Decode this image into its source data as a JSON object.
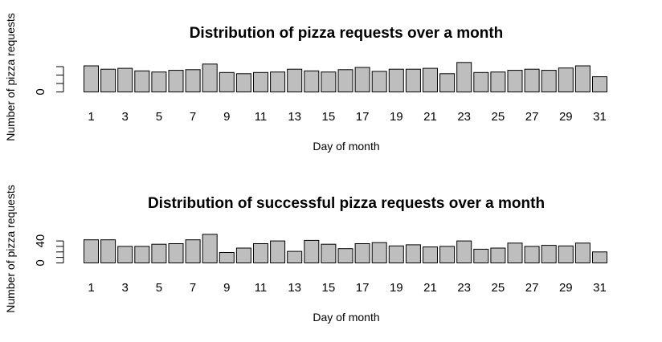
{
  "chart_data": [
    {
      "type": "bar",
      "title": "Distribution of pizza requests over a month",
      "xlabel": "Day of month",
      "ylabel": "Number of pizza requests",
      "categories": [
        "1",
        "2",
        "3",
        "4",
        "5",
        "6",
        "7",
        "8",
        "9",
        "10",
        "11",
        "12",
        "13",
        "14",
        "15",
        "16",
        "17",
        "18",
        "19",
        "20",
        "21",
        "22",
        "23",
        "24",
        "25",
        "26",
        "27",
        "28",
        "29",
        "30",
        "31"
      ],
      "x_tick_labels": [
        "1",
        "3",
        "5",
        "7",
        "9",
        "11",
        "13",
        "15",
        "17",
        "19",
        "21",
        "23",
        "25",
        "27",
        "29",
        "31"
      ],
      "y_tick_labels": [
        "0"
      ],
      "values": [
        155,
        135,
        140,
        125,
        118,
        128,
        132,
        165,
        115,
        108,
        115,
        118,
        135,
        125,
        118,
        132,
        145,
        122,
        135,
        135,
        140,
        108,
        175,
        115,
        118,
        128,
        135,
        128,
        142,
        155,
        90
      ],
      "ylim": [
        0,
        160
      ],
      "y_ticks": [
        0,
        50,
        100,
        150
      ],
      "grid": false
    },
    {
      "type": "bar",
      "title": "Distribution of successful pizza requests over a month",
      "xlabel": "Day of month",
      "ylabel": "Number of pizza requests",
      "categories": [
        "1",
        "2",
        "3",
        "4",
        "5",
        "6",
        "7",
        "8",
        "9",
        "10",
        "11",
        "12",
        "13",
        "14",
        "15",
        "16",
        "17",
        "18",
        "19",
        "20",
        "21",
        "22",
        "23",
        "24",
        "25",
        "26",
        "27",
        "28",
        "29",
        "30",
        "31"
      ],
      "x_tick_labels": [
        "1",
        "3",
        "5",
        "7",
        "9",
        "11",
        "13",
        "15",
        "17",
        "19",
        "21",
        "23",
        "25",
        "27",
        "29",
        "31"
      ],
      "y_tick_labels": [
        "0",
        "40"
      ],
      "values": [
        42,
        42,
        30,
        30,
        34,
        35,
        42,
        52,
        19,
        27,
        35,
        40,
        21,
        41,
        34,
        26,
        35,
        37,
        31,
        33,
        29,
        30,
        40,
        25,
        27,
        36,
        30,
        32,
        31,
        36,
        20
      ],
      "ylim": [
        0,
        48
      ],
      "y_ticks": [
        0,
        10,
        20,
        30,
        40
      ],
      "grid": false
    }
  ]
}
